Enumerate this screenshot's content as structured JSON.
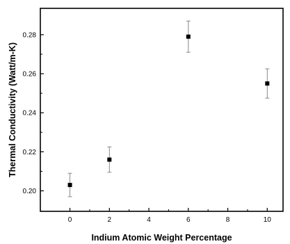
{
  "chart_data": {
    "type": "scatter",
    "title": "",
    "xlabel": "Indium Atomic Weight Percentage",
    "ylabel": "Thermal Conductivity (Watt/m-K)",
    "xlim": [
      -1.5,
      10.8
    ],
    "ylim": [
      0.1895,
      0.2935
    ],
    "x_ticks": [
      0,
      2,
      4,
      6,
      8,
      10
    ],
    "y_ticks": [
      0.2,
      0.22,
      0.24,
      0.26,
      0.28
    ],
    "x_tick_labels": [
      "0",
      "2",
      "4",
      "6",
      "8",
      "10"
    ],
    "y_tick_labels": [
      "0.20",
      "0.22",
      "0.24",
      "0.26",
      "0.28"
    ],
    "grid": false,
    "marker": "square",
    "colors": {
      "marker": "#000000",
      "error_bar": "#888888",
      "axis": "#000000"
    },
    "series": [
      {
        "x": [
          0,
          2,
          6,
          10
        ],
        "y": [
          0.203,
          0.216,
          0.279,
          0.255
        ],
        "y_err": [
          0.006,
          0.0065,
          0.008,
          0.0075
        ]
      }
    ]
  }
}
